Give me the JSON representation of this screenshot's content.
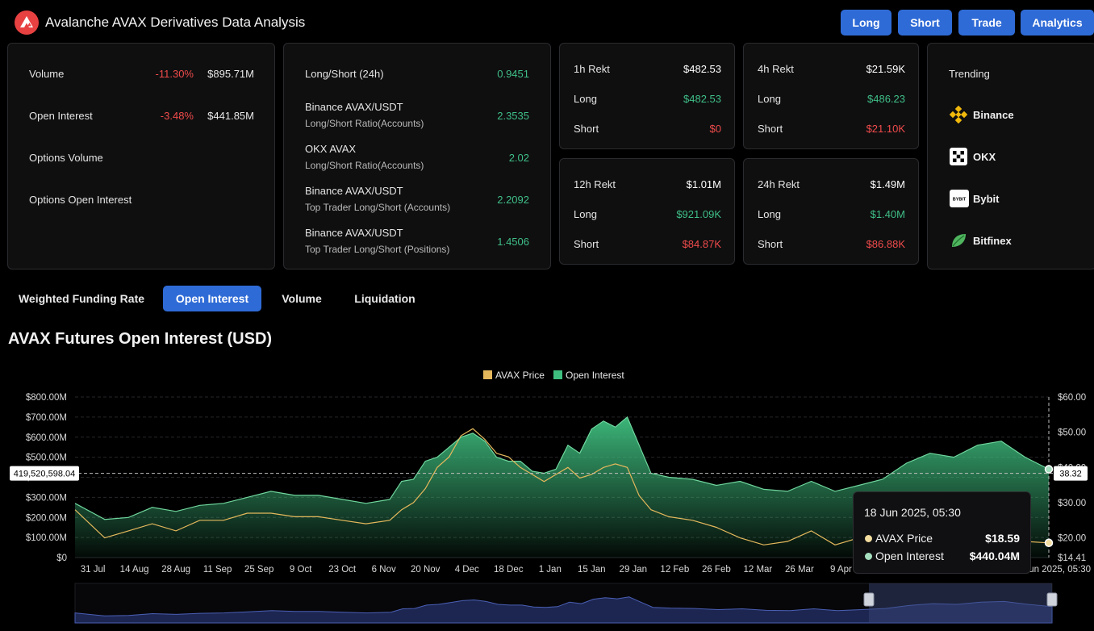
{
  "header": {
    "title": "Avalanche AVAX Derivatives Data Analysis",
    "buttons": [
      "Long",
      "Short",
      "Trade",
      "Analytics"
    ]
  },
  "stats": {
    "volume": {
      "label": "Volume",
      "change": "-11.30%",
      "value": "$895.71M"
    },
    "open_interest": {
      "label": "Open Interest",
      "change": "-3.48%",
      "value": "$441.85M"
    },
    "options_volume": {
      "label": "Options Volume"
    },
    "options_open_interest": {
      "label": "Options Open Interest"
    }
  },
  "ratios": [
    {
      "title": "Long/Short (24h)",
      "subtitle": "",
      "value": "0.9451"
    },
    {
      "title": "Binance AVAX/USDT",
      "subtitle": "Long/Short Ratio(Accounts)",
      "value": "2.3535"
    },
    {
      "title": "OKX AVAX",
      "subtitle": "Long/Short Ratio(Accounts)",
      "value": "2.02"
    },
    {
      "title": "Binance AVAX/USDT",
      "subtitle": "Top Trader Long/Short (Accounts)",
      "value": "2.2092"
    },
    {
      "title": "Binance AVAX/USDT",
      "subtitle": "Top Trader Long/Short (Positions)",
      "value": "1.4506"
    }
  ],
  "rekt": [
    {
      "title": "1h Rekt",
      "total": "$482.53",
      "long_label": "Long",
      "long": "$482.53",
      "short_label": "Short",
      "short": "$0"
    },
    {
      "title": "4h Rekt",
      "total": "$21.59K",
      "long_label": "Long",
      "long": "$486.23",
      "short_label": "Short",
      "short": "$21.10K"
    },
    {
      "title": "12h Rekt",
      "total": "$1.01M",
      "long_label": "Long",
      "long": "$921.09K",
      "short_label": "Short",
      "short": "$84.87K"
    },
    {
      "title": "24h Rekt",
      "total": "$1.49M",
      "long_label": "Long",
      "long": "$1.40M",
      "short_label": "Short",
      "short": "$86.88K"
    }
  ],
  "trending": {
    "title": "Trending",
    "items": [
      {
        "name": "Binance",
        "icon": "binance-icon"
      },
      {
        "name": "OKX",
        "icon": "okx-icon"
      },
      {
        "name": "Bybit",
        "icon": "bybit-icon",
        "logo_text": "BYBIT"
      },
      {
        "name": "Bitfinex",
        "icon": "bitfinex-icon"
      }
    ]
  },
  "tabs": [
    "Weighted Funding Rate",
    "Open Interest",
    "Volume",
    "Liquidation"
  ],
  "active_tab": "Open Interest",
  "chart_title": "AVAX Futures Open Interest (USD)",
  "crosshair": {
    "left_value": "419,520,598.04",
    "right_value": "38.32"
  },
  "tooltip": {
    "date": "18 Jun 2025, 05:30",
    "price_label": "AVAX Price",
    "price_value": "$18.59",
    "oi_label": "Open Interest",
    "oi_value": "$440.04M"
  },
  "colors": {
    "accent": "#2f6bd6",
    "price": "#e5b85c",
    "open_interest": "#3fbf7f",
    "negative": "#f04b4b",
    "positive": "#3fbf87"
  },
  "chart_data": {
    "type": "area",
    "title": "AVAX Futures Open Interest (USD)",
    "legend": [
      "AVAX Price",
      "Open Interest"
    ],
    "x_ticks": [
      "31 Jul",
      "14 Aug",
      "28 Aug",
      "11 Sep",
      "25 Sep",
      "9 Oct",
      "23 Oct",
      "6 Nov",
      "20 Nov",
      "4 Dec",
      "18 Dec",
      "1 Jan",
      "15 Jan",
      "29 Jan",
      "12 Feb",
      "26 Feb",
      "12 Mar",
      "26 Mar",
      "9 Apr",
      "Jun 2025, 05:30"
    ],
    "y_left_ticks": [
      "$0",
      "$100.00M",
      "$200.00M",
      "$300.00M",
      "$400.00M",
      "$500.00M",
      "$600.00M",
      "$700.00M",
      "$800.00M"
    ],
    "y_right_ticks": [
      "$14.41",
      "$20.00",
      "$30.00",
      "$40.00",
      "$50.00",
      "$60.00"
    ],
    "ylim_left": [
      0,
      800000000
    ],
    "ylim_right": [
      14.41,
      60
    ],
    "x_start": "2024-07-25",
    "x_end": "2025-06-18",
    "series": [
      {
        "name": "Open Interest",
        "axis": "left",
        "x": [
          "2024-07-25",
          "2024-08-04",
          "2024-08-12",
          "2024-08-20",
          "2024-08-28",
          "2024-09-05",
          "2024-09-13",
          "2024-09-21",
          "2024-09-29",
          "2024-10-07",
          "2024-10-15",
          "2024-10-23",
          "2024-10-31",
          "2024-11-08",
          "2024-11-12",
          "2024-11-16",
          "2024-11-20",
          "2024-11-24",
          "2024-11-28",
          "2024-12-02",
          "2024-12-06",
          "2024-12-10",
          "2024-12-14",
          "2024-12-18",
          "2024-12-22",
          "2024-12-26",
          "2024-12-30",
          "2025-01-03",
          "2025-01-07",
          "2025-01-11",
          "2025-01-15",
          "2025-01-19",
          "2025-01-23",
          "2025-01-27",
          "2025-01-31",
          "2025-02-04",
          "2025-02-10",
          "2025-02-18",
          "2025-02-26",
          "2025-03-06",
          "2025-03-14",
          "2025-03-22",
          "2025-03-30",
          "2025-04-07",
          "2025-04-15",
          "2025-04-23",
          "2025-05-01",
          "2025-05-09",
          "2025-05-17",
          "2025-05-25",
          "2025-06-02",
          "2025-06-10",
          "2025-06-18"
        ],
        "values": [
          270000000,
          190000000,
          200000000,
          250000000,
          230000000,
          260000000,
          270000000,
          300000000,
          330000000,
          310000000,
          310000000,
          290000000,
          270000000,
          290000000,
          380000000,
          390000000,
          480000000,
          500000000,
          550000000,
          600000000,
          620000000,
          580000000,
          500000000,
          480000000,
          480000000,
          430000000,
          420000000,
          440000000,
          560000000,
          520000000,
          640000000,
          680000000,
          650000000,
          700000000,
          560000000,
          420000000,
          400000000,
          390000000,
          360000000,
          380000000,
          340000000,
          330000000,
          380000000,
          330000000,
          360000000,
          390000000,
          470000000,
          520000000,
          500000000,
          560000000,
          580000000,
          500000000,
          440000000
        ]
      },
      {
        "name": "AVAX Price",
        "axis": "right",
        "x": [
          "2024-07-25",
          "2024-08-04",
          "2024-08-12",
          "2024-08-20",
          "2024-08-28",
          "2024-09-05",
          "2024-09-13",
          "2024-09-21",
          "2024-09-29",
          "2024-10-07",
          "2024-10-15",
          "2024-10-23",
          "2024-10-31",
          "2024-11-08",
          "2024-11-12",
          "2024-11-16",
          "2024-11-20",
          "2024-11-24",
          "2024-11-28",
          "2024-12-02",
          "2024-12-06",
          "2024-12-10",
          "2024-12-14",
          "2024-12-18",
          "2024-12-22",
          "2024-12-26",
          "2024-12-30",
          "2025-01-03",
          "2025-01-07",
          "2025-01-11",
          "2025-01-15",
          "2025-01-19",
          "2025-01-23",
          "2025-01-27",
          "2025-01-31",
          "2025-02-04",
          "2025-02-10",
          "2025-02-18",
          "2025-02-26",
          "2025-03-06",
          "2025-03-14",
          "2025-03-22",
          "2025-03-30",
          "2025-04-07",
          "2025-04-15",
          "2025-04-23",
          "2025-05-01",
          "2025-05-09",
          "2025-05-17",
          "2025-05-25",
          "2025-06-02",
          "2025-06-10",
          "2025-06-18"
        ],
        "values": [
          28,
          20,
          22,
          24,
          22,
          25,
          25,
          27,
          27,
          26,
          26,
          25,
          24,
          25,
          28,
          30,
          34,
          40,
          43,
          49,
          51,
          48,
          44,
          43,
          40,
          38,
          36,
          38,
          40,
          37,
          38,
          40,
          41,
          40,
          32,
          28,
          26,
          25,
          23,
          20,
          18,
          19,
          22,
          18,
          20,
          21,
          23,
          25,
          24,
          23,
          21,
          19,
          18.59
        ]
      }
    ],
    "grid": true,
    "legend_position": "top-center"
  }
}
